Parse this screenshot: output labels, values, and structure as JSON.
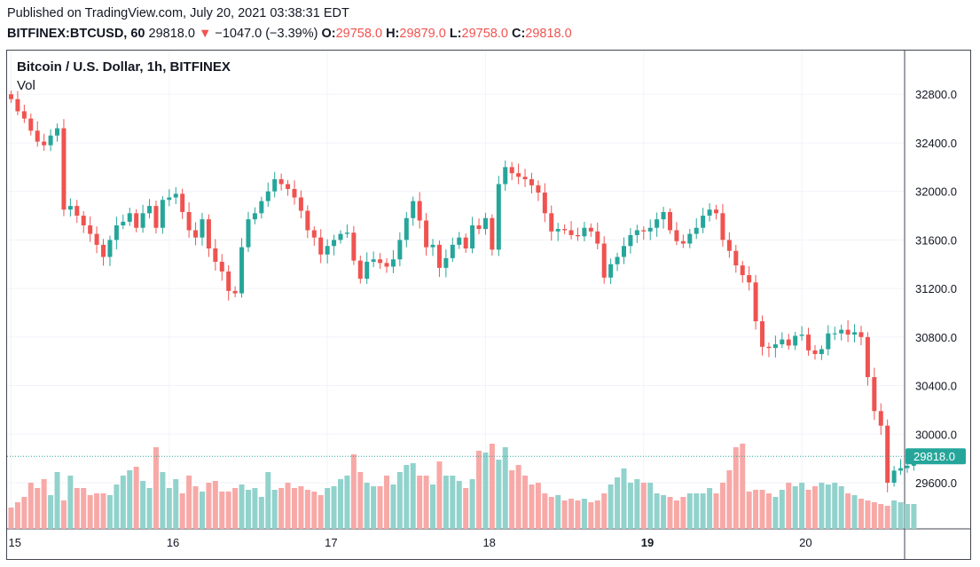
{
  "header": {
    "published": "Published on TradingView.com, July 20, 2021 03:38:31 EDT",
    "symbol": "BITFINEX:BTCUSD, 60",
    "last": "29818.0",
    "down_arrow": "▼",
    "change": "−1047.0 (−3.39%)",
    "o_label": "O:",
    "o_val": "29758.0",
    "h_label": "H:",
    "h_val": "29879.0",
    "l_label": "L:",
    "l_val": "29758.0",
    "c_label": "C:",
    "c_val": "29818.0"
  },
  "legend": {
    "title": "Bitcoin / U.S. Dollar, 1h, BITFINEX",
    "volume": "Vol"
  },
  "chart_data": {
    "type": "candlestick",
    "title": "Bitcoin / U.S. Dollar, 1h, BITFINEX",
    "interval": "1h",
    "ylim": [
      29220,
      33160
    ],
    "y_ticks": [
      "29600.0",
      "30000.0",
      "30400.0",
      "30800.0",
      "31200.0",
      "31600.0",
      "32000.0",
      "32400.0",
      "32800.0"
    ],
    "y_tick_values": [
      29600,
      30000,
      30400,
      30800,
      31200,
      31600,
      32000,
      32400,
      32800
    ],
    "x_ticks": [
      {
        "label": "15",
        "index": 0,
        "bold": false
      },
      {
        "label": "16",
        "index": 24,
        "bold": false
      },
      {
        "label": "17",
        "index": 48,
        "bold": false
      },
      {
        "label": "18",
        "index": 72,
        "bold": false
      },
      {
        "label": "19",
        "index": 96,
        "bold": true
      },
      {
        "label": "20",
        "index": 120,
        "bold": false
      }
    ],
    "last_price": 29818,
    "last_price_label": "29818.0",
    "colors": {
      "up": "#26a69a",
      "down": "#ef5350",
      "vol_up": "#92d2cc",
      "vol_down": "#f7a9a7",
      "grid": "#f0f3fa"
    },
    "closes": [
      32760,
      32660,
      32600,
      32500,
      32410,
      32380,
      32460,
      32520,
      31850,
      31880,
      31800,
      31720,
      31650,
      31560,
      31460,
      31600,
      31720,
      31750,
      31820,
      31700,
      31820,
      31880,
      31700,
      31930,
      31950,
      31980,
      31830,
      31680,
      31620,
      31770,
      31530,
      31420,
      31340,
      31180,
      31160,
      31540,
      31770,
      31820,
      31920,
      32000,
      32100,
      32060,
      32020,
      31950,
      31840,
      31680,
      31620,
      31480,
      31550,
      31600,
      31650,
      31660,
      31430,
      31280,
      31420,
      31440,
      31410,
      31380,
      31440,
      31600,
      31780,
      31920,
      31760,
      31540,
      31560,
      31370,
      31450,
      31560,
      31620,
      31530,
      31720,
      31690,
      31780,
      31520,
      32060,
      32200,
      32150,
      32120,
      32100,
      32050,
      31990,
      31820,
      31670,
      31690,
      31680,
      31640,
      31630,
      31700,
      31670,
      31570,
      31290,
      31400,
      31460,
      31550,
      31640,
      31680,
      31670,
      31700,
      31770,
      31830,
      31680,
      31590,
      31570,
      31650,
      31700,
      31800,
      31850,
      31820,
      31600,
      31510,
      31390,
      31310,
      31250,
      30930,
      30720,
      30710,
      30740,
      30780,
      30730,
      30810,
      30820,
      30690,
      30660,
      30700,
      30830,
      30830,
      30860,
      30820,
      30840,
      30800,
      30470,
      30190,
      30070,
      29600,
      29700,
      29720,
      29740,
      29818
    ],
    "volumes": [
      120,
      150,
      180,
      260,
      230,
      280,
      190,
      320,
      160,
      300,
      230,
      230,
      190,
      200,
      200,
      190,
      250,
      300,
      330,
      350,
      270,
      230,
      460,
      320,
      230,
      280,
      200,
      300,
      240,
      210,
      260,
      270,
      210,
      210,
      230,
      250,
      220,
      230,
      180,
      320,
      220,
      230,
      260,
      230,
      240,
      220,
      210,
      190,
      230,
      240,
      280,
      300,
      420,
      320,
      260,
      240,
      240,
      300,
      250,
      320,
      360,
      370,
      300,
      300,
      250,
      380,
      300,
      300,
      270,
      230,
      280,
      440,
      430,
      480,
      390,
      460,
      330,
      360,
      300,
      250,
      260,
      200,
      180,
      190,
      160,
      170,
      160,
      170,
      150,
      160,
      200,
      250,
      290,
      340,
      260,
      280,
      260,
      260,
      200,
      190,
      180,
      160,
      180,
      200,
      200,
      200,
      230,
      200,
      260,
      330,
      460,
      480,
      210,
      220,
      220,
      200,
      180,
      220,
      260,
      240,
      260,
      220,
      240,
      260,
      250,
      260,
      240,
      200,
      190,
      170,
      160,
      150,
      140,
      130,
      160,
      150,
      140,
      140
    ]
  }
}
